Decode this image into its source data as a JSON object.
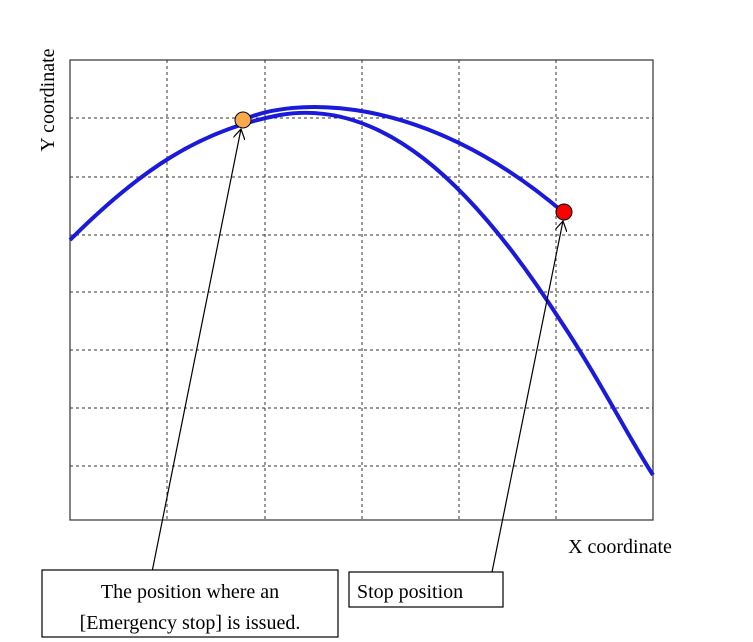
{
  "axes": {
    "y_label": "Y coordinate",
    "x_label": "X coordinate"
  },
  "callouts": [
    {
      "lines": [
        "The position where an",
        "[Emergency stop] is issued."
      ]
    },
    {
      "lines": [
        "Stop position"
      ]
    }
  ]
}
